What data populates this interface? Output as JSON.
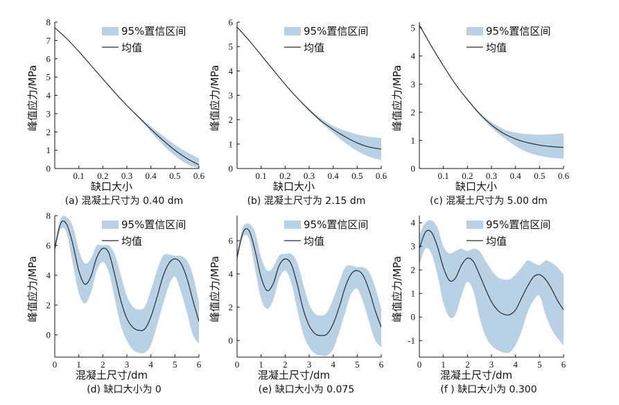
{
  "chart_data": [
    {
      "type": "line",
      "caption": "(a) 混凝土尺寸为 0.40 dm",
      "xlabel": "缺口大小",
      "ylabel": "峰值应力/MPa",
      "xlim": [
        0,
        0.6
      ],
      "ylim": [
        0,
        8
      ],
      "xticks": [
        0.1,
        0.2,
        0.3,
        0.4,
        0.5,
        0.6
      ],
      "xtick_labels": [
        "0.1",
        "0.2",
        "0.3",
        "0.4",
        "0.5",
        "0.6"
      ],
      "yticks": [
        0,
        1,
        2,
        3,
        4,
        5,
        6,
        7,
        8
      ],
      "ytick_labels": [
        "0",
        "1",
        "2",
        "3",
        "4",
        "5",
        "6",
        "7",
        "8"
      ],
      "legend": [
        "95%置信区间",
        "均值"
      ],
      "x": [
        0,
        0.05,
        0.1,
        0.15,
        0.2,
        0.25,
        0.3,
        0.35,
        0.4,
        0.45,
        0.5,
        0.55,
        0.6
      ],
      "mean": [
        7.7,
        7.1,
        6.4,
        5.65,
        4.9,
        4.15,
        3.45,
        2.8,
        2.15,
        1.55,
        1.0,
        0.55,
        0.2
      ],
      "lower": [
        7.7,
        7.1,
        6.4,
        5.65,
        4.9,
        4.15,
        3.45,
        2.75,
        2.0,
        1.3,
        0.7,
        0.25,
        0.0
      ],
      "upper": [
        7.7,
        7.1,
        6.4,
        5.65,
        4.9,
        4.15,
        3.45,
        2.85,
        2.3,
        1.8,
        1.3,
        0.9,
        0.55
      ]
    },
    {
      "type": "line",
      "caption": "(b) 混凝土尺寸为 2.15 dm",
      "xlabel": "缺口大小",
      "ylabel": "峰值应力/MPa",
      "xlim": [
        0,
        0.6
      ],
      "ylim": [
        0,
        6
      ],
      "xticks": [
        0.1,
        0.2,
        0.3,
        0.4,
        0.5,
        0.6
      ],
      "xtick_labels": [
        "0.1",
        "0.2",
        "0.3",
        "0.4",
        "0.5",
        "0.6"
      ],
      "yticks": [
        0,
        1,
        2,
        3,
        4,
        5,
        6
      ],
      "ytick_labels": [
        "0",
        "1",
        "2",
        "3",
        "4",
        "5",
        "6"
      ],
      "legend": [
        "95%置信区间",
        "均值"
      ],
      "x": [
        0,
        0.05,
        0.1,
        0.15,
        0.2,
        0.25,
        0.3,
        0.35,
        0.4,
        0.45,
        0.5,
        0.55,
        0.6
      ],
      "mean": [
        5.8,
        5.25,
        4.65,
        4.05,
        3.45,
        2.9,
        2.4,
        1.95,
        1.6,
        1.3,
        1.05,
        0.88,
        0.8
      ],
      "lower": [
        5.8,
        5.25,
        4.65,
        4.05,
        3.45,
        2.88,
        2.35,
        1.88,
        1.45,
        1.05,
        0.72,
        0.48,
        0.35
      ],
      "upper": [
        5.8,
        5.25,
        4.65,
        4.05,
        3.45,
        2.92,
        2.45,
        2.05,
        1.75,
        1.55,
        1.4,
        1.3,
        1.25
      ]
    },
    {
      "type": "line",
      "caption": "(c) 混凝土尺寸为 5.00 dm",
      "xlabel": "缺口大小",
      "ylabel": "峰值应力/MPa",
      "xlim": [
        0,
        0.6
      ],
      "ylim": [
        0,
        5.2
      ],
      "xticks": [
        0.1,
        0.2,
        0.3,
        0.4,
        0.5,
        0.6
      ],
      "xtick_labels": [
        "0.1",
        "0.2",
        "0.3",
        "0.4",
        "0.5",
        "0.6"
      ],
      "yticks": [
        0,
        1,
        2,
        3,
        4,
        5
      ],
      "ytick_labels": [
        "0",
        "1",
        "2",
        "3",
        "4",
        "5"
      ],
      "legend": [
        "95%置信区间",
        "均值"
      ],
      "x": [
        0,
        0.05,
        0.1,
        0.15,
        0.2,
        0.25,
        0.3,
        0.35,
        0.4,
        0.45,
        0.5,
        0.55,
        0.6
      ],
      "mean": [
        5.1,
        4.35,
        3.65,
        3.0,
        2.45,
        1.95,
        1.55,
        1.25,
        1.05,
        0.92,
        0.83,
        0.78,
        0.75
      ],
      "lower": [
        5.1,
        4.35,
        3.65,
        3.0,
        2.42,
        1.9,
        1.45,
        1.1,
        0.8,
        0.58,
        0.45,
        0.38,
        0.35
      ],
      "upper": [
        5.1,
        4.35,
        3.65,
        3.0,
        2.48,
        2.0,
        1.65,
        1.4,
        1.28,
        1.22,
        1.2,
        1.22,
        1.25
      ]
    },
    {
      "type": "line",
      "caption": "(d) 缺口大小为 0",
      "xlabel": "混凝土尺寸/dm",
      "ylabel": "峰值应力/MPa",
      "xlim": [
        0,
        6
      ],
      "ylim": [
        -1.5,
        8
      ],
      "xticks": [
        0,
        1,
        2,
        3,
        4,
        5,
        6
      ],
      "xtick_labels": [
        "0",
        "1",
        "2",
        "3",
        "4",
        "5",
        "6"
      ],
      "yticks": [
        0,
        2,
        4,
        6,
        8
      ],
      "ytick_labels": [
        "0",
        "2",
        "4",
        "6",
        "8"
      ],
      "legend": [
        "95%置信区间",
        "均值"
      ],
      "x": [
        0,
        0.25,
        0.5,
        0.75,
        1.0,
        1.25,
        1.5,
        1.75,
        2.0,
        2.25,
        2.5,
        2.75,
        3.0,
        3.25,
        3.5,
        3.75,
        4.0,
        4.25,
        4.5,
        4.75,
        5.0,
        5.25,
        5.5,
        5.75,
        6.0
      ],
      "mean": [
        5.8,
        7.5,
        7.4,
        6.1,
        4.3,
        3.4,
        3.9,
        5.2,
        5.8,
        5.5,
        4.0,
        2.3,
        1.1,
        0.5,
        0.3,
        0.4,
        1.2,
        2.5,
        3.9,
        4.8,
        5.1,
        4.8,
        3.8,
        2.3,
        0.9
      ],
      "lower": [
        5.5,
        7.1,
        6.8,
        4.8,
        2.8,
        2.1,
        2.8,
        4.3,
        4.9,
        4.2,
        2.4,
        0.6,
        -0.4,
        -1.0,
        -1.2,
        -1.2,
        -0.7,
        0.6,
        2.0,
        3.3,
        3.9,
        2.9,
        1.5,
        0.0,
        -0.6
      ],
      "upper": [
        6.1,
        7.8,
        7.9,
        7.3,
        5.7,
        4.8,
        5.1,
        6.0,
        6.0,
        6.0,
        5.4,
        4.0,
        2.6,
        1.9,
        1.7,
        1.9,
        3.0,
        4.3,
        5.3,
        5.4,
        5.3,
        5.3,
        5.0,
        4.0,
        2.2
      ]
    },
    {
      "type": "line",
      "caption": "(e) 缺口大小为 0.075",
      "xlabel": "混凝土尺寸/dm",
      "ylabel": "峰值应力/MPa",
      "xlim": [
        0,
        6
      ],
      "ylim": [
        -1,
        7.5
      ],
      "xticks": [
        0,
        1,
        2,
        3,
        4,
        5,
        6
      ],
      "xtick_labels": [
        "0",
        "1",
        "2",
        "3",
        "4",
        "5",
        "6"
      ],
      "yticks": [
        0,
        2,
        4,
        6
      ],
      "ytick_labels": [
        "0",
        "2",
        "4",
        "6"
      ],
      "legend": [
        "95%置信区间",
        "均值"
      ],
      "x": [
        0,
        0.25,
        0.5,
        0.75,
        1.0,
        1.25,
        1.5,
        1.75,
        2.0,
        2.25,
        2.5,
        2.75,
        3.0,
        3.25,
        3.5,
        3.75,
        4.0,
        4.25,
        4.5,
        4.75,
        5.0,
        5.25,
        5.5,
        5.75,
        6.0
      ],
      "mean": [
        5.0,
        6.5,
        6.6,
        5.4,
        3.8,
        3.0,
        3.4,
        4.5,
        4.9,
        4.6,
        3.4,
        1.9,
        0.9,
        0.4,
        0.3,
        0.4,
        1.0,
        2.0,
        3.2,
        4.0,
        4.2,
        3.9,
        3.0,
        1.8,
        0.8
      ],
      "lower": [
        4.8,
        6.2,
        6.1,
        4.3,
        2.5,
        1.9,
        2.4,
        3.7,
        4.2,
        3.5,
        1.9,
        0.4,
        -0.4,
        -0.8,
        -0.9,
        -0.9,
        -0.5,
        0.5,
        1.7,
        2.8,
        3.1,
        2.3,
        1.1,
        0.0,
        -0.4
      ],
      "upper": [
        5.3,
        6.8,
        7.0,
        6.5,
        5.0,
        4.2,
        4.4,
        5.1,
        5.2,
        5.2,
        4.7,
        3.4,
        2.2,
        1.6,
        1.5,
        1.7,
        2.5,
        3.5,
        4.4,
        4.5,
        4.4,
        4.4,
        4.1,
        3.2,
        1.9
      ]
    },
    {
      "type": "line",
      "caption": "(f ) 缺口大小为 0.300",
      "xlabel": "混凝土尺寸/dm",
      "ylabel": "峰值应力/MPa",
      "xlim": [
        0,
        6
      ],
      "ylim": [
        -1.7,
        4.3
      ],
      "xticks": [
        0,
        1,
        2,
        3,
        4,
        5,
        6
      ],
      "xtick_labels": [
        "0",
        "1",
        "2",
        "3",
        "4",
        "5",
        "6"
      ],
      "yticks": [
        -1,
        0,
        1,
        2,
        3,
        4
      ],
      "ytick_labels": [
        "-1",
        "0",
        "1",
        "2",
        "3",
        "4"
      ],
      "legend": [
        "95%置信区间",
        "均值"
      ],
      "x": [
        0,
        0.25,
        0.5,
        0.75,
        1.0,
        1.25,
        1.5,
        1.75,
        2.0,
        2.25,
        2.5,
        2.75,
        3.0,
        3.25,
        3.5,
        3.75,
        4.0,
        4.25,
        4.5,
        4.75,
        5.0,
        5.25,
        5.5,
        5.75,
        6.0
      ],
      "mean": [
        2.9,
        3.6,
        3.6,
        3.0,
        2.1,
        1.55,
        1.65,
        2.2,
        2.5,
        2.35,
        1.8,
        1.2,
        0.65,
        0.3,
        0.12,
        0.1,
        0.3,
        0.8,
        1.3,
        1.7,
        1.8,
        1.6,
        1.2,
        0.7,
        0.3
      ],
      "lower": [
        2.2,
        2.9,
        2.7,
        1.8,
        0.6,
        0.0,
        0.1,
        0.9,
        1.5,
        1.1,
        0.0,
        -0.8,
        -1.2,
        -1.4,
        -1.5,
        -1.5,
        -1.2,
        -0.6,
        0.2,
        0.7,
        0.9,
        0.1,
        -0.5,
        -0.9,
        -1.2
      ],
      "upper": [
        3.5,
        4.0,
        4.1,
        3.8,
        3.0,
        2.7,
        2.8,
        2.9,
        2.8,
        2.9,
        2.8,
        2.4,
        2.0,
        1.7,
        1.6,
        1.6,
        1.8,
        2.1,
        2.4,
        2.3,
        2.2,
        2.4,
        2.3,
        2.1,
        1.8
      ]
    }
  ],
  "colors": {
    "band": "#b8d1e5",
    "line": "#2b2b2b",
    "axis": "#111111"
  }
}
